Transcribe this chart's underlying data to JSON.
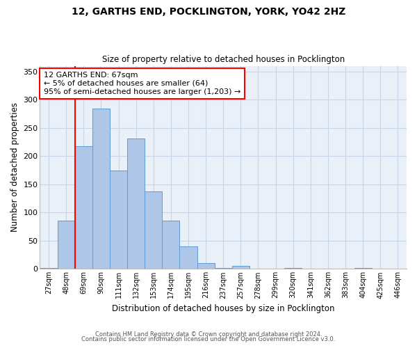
{
  "title1": "12, GARTHS END, POCKLINGTON, YORK, YO42 2HZ",
  "title2": "Size of property relative to detached houses in Pocklington",
  "xlabel": "Distribution of detached houses by size in Pocklington",
  "ylabel": "Number of detached properties",
  "categories": [
    "27sqm",
    "48sqm",
    "69sqm",
    "90sqm",
    "111sqm",
    "132sqm",
    "153sqm",
    "174sqm",
    "195sqm",
    "216sqm",
    "237sqm",
    "257sqm",
    "278sqm",
    "299sqm",
    "320sqm",
    "341sqm",
    "362sqm",
    "383sqm",
    "404sqm",
    "425sqm",
    "446sqm"
  ],
  "values": [
    2,
    86,
    218,
    284,
    174,
    231,
    137,
    85,
    40,
    10,
    2,
    5,
    1,
    0,
    2,
    0,
    0,
    0,
    2,
    0,
    1
  ],
  "bar_color": "#aec6e8",
  "bar_edge_color": "#5b9bd5",
  "bar_width": 1.0,
  "grid_color": "#c8d4e8",
  "background_color": "#eaf0f8",
  "annotation_box_text": "12 GARTHS END: 67sqm\n← 5% of detached houses are smaller (64)\n95% of semi-detached houses are larger (1,203) →",
  "annotation_box_color": "white",
  "annotation_box_edge_color": "red",
  "vline_x": 1.5,
  "vline_color": "red",
  "ylim": [
    0,
    360
  ],
  "yticks": [
    0,
    50,
    100,
    150,
    200,
    250,
    300,
    350
  ],
  "footer1": "Contains HM Land Registry data © Crown copyright and database right 2024.",
  "footer2": "Contains public sector information licensed under the Open Government Licence v3.0."
}
